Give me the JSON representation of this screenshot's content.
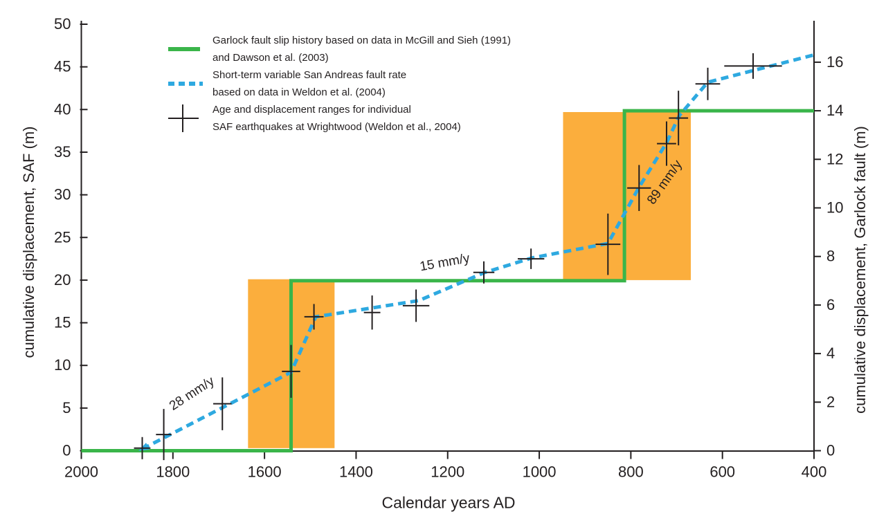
{
  "colors": {
    "garlock_green": "#3ab54a",
    "saf_blue": "#2ea9e0",
    "highlight_orange": "#fbae3d",
    "ink": "#231f20"
  },
  "legend": {
    "items": [
      {
        "swatch": "green-solid-line",
        "line1": "Garlock fault slip history based on data in McGill and Sieh (1991)",
        "line2": "and Dawson et al. (2003)"
      },
      {
        "swatch": "blue-dashed-line",
        "line1": "Short-term variable San Andreas fault rate",
        "line2": "based on data in Weldon et al. (2004)"
      },
      {
        "swatch": "black-cross",
        "line1": "Age and displacement ranges for individual",
        "line2": "SAF earthquakes at Wrightwood (Weldon et al., 2004)"
      }
    ]
  },
  "chart_data": {
    "type": "line",
    "title": "",
    "xlabel": "Calendar years AD",
    "ylabel_left": "cumulative displacement, SAF (m)",
    "ylabel_right": "cumulative displacement, Garlock fault (m)",
    "x_range": [
      2000,
      400
    ],
    "x_reversed": true,
    "x_ticks": [
      2000,
      1800,
      1600,
      1400,
      1200,
      1000,
      800,
      600,
      400
    ],
    "y_left_range": [
      0,
      50
    ],
    "y_left_ticks": [
      0,
      5,
      10,
      15,
      20,
      25,
      30,
      35,
      40,
      45,
      50
    ],
    "y_right_range": [
      0,
      16
    ],
    "y_right_ticks": [
      0,
      2,
      4,
      6,
      8,
      10,
      12,
      14,
      16
    ],
    "grid": false,
    "legend_position": "top-left",
    "series": [
      {
        "name": "Garlock fault slip history based on data in McGill and Sieh (1991) and Dawson et al. (2003)",
        "type": "step-line",
        "axis": "right",
        "color": "#3ab54a",
        "points": [
          [
            2000,
            0
          ],
          [
            1542,
            0
          ],
          [
            1542,
            7
          ],
          [
            814,
            7
          ],
          [
            814,
            14
          ],
          [
            400,
            14
          ]
        ]
      },
      {
        "name": "Short-term variable San Andreas fault rate based on data in Weldon et al. (2004)",
        "type": "dashed-line",
        "axis": "left",
        "color": "#2ea9e0",
        "start_arrow": true,
        "points": [
          [
            1867,
            0.2
          ],
          [
            1542,
            9.2
          ],
          [
            1488,
            15.7
          ],
          [
            1263,
            17.6
          ],
          [
            1119,
            20.9
          ],
          [
            1016,
            22.6
          ],
          [
            850,
            24.3
          ],
          [
            782,
            30.9
          ],
          [
            722,
            36.1
          ],
          [
            694,
            39.3
          ],
          [
            632,
            43.2
          ],
          [
            400,
            46.4
          ]
        ]
      },
      {
        "name": "Age and displacement ranges for individual SAF earthquakes at Wrightwood (Weldon et al., 2004)",
        "type": "error-cross",
        "axis": "left",
        "color": "#231f20",
        "points": [
          {
            "year": 1867,
            "m": 0.3,
            "year_err": 18,
            "m_err": 1.3
          },
          {
            "year": 1820,
            "m": 1.9,
            "year_err": 17,
            "m_err": 3.0
          },
          {
            "year": 1692,
            "m": 5.5,
            "year_err": 20,
            "m_err": 3.1
          },
          {
            "year": 1542,
            "m": 9.3,
            "year_err": 20,
            "m_err": 3.1
          },
          {
            "year": 1492,
            "m": 15.7,
            "year_err": 21,
            "m_err": 1.5
          },
          {
            "year": 1365,
            "m": 16.2,
            "year_err": 18,
            "m_err": 2.0
          },
          {
            "year": 1269,
            "m": 17.0,
            "year_err": 29,
            "m_err": 1.9
          },
          {
            "year": 1121,
            "m": 20.9,
            "year_err": 23,
            "m_err": 1.3
          },
          {
            "year": 1018,
            "m": 22.5,
            "year_err": 29,
            "m_err": 1.2
          },
          {
            "year": 850,
            "m": 24.2,
            "year_err": 27,
            "m_err": 3.6
          },
          {
            "year": 782,
            "m": 30.8,
            "year_err": 26,
            "m_err": 2.7
          },
          {
            "year": 722,
            "m": 36.0,
            "year_err": 21,
            "m_err": 2.6
          },
          {
            "year": 696,
            "m": 39.0,
            "year_err": 21,
            "m_err": 3.2
          },
          {
            "year": 632,
            "m": 43.0,
            "year_err": 27,
            "m_err": 1.9
          },
          {
            "year": 533,
            "m": 45.1,
            "year_err": 63,
            "m_err": 1.5
          }
        ]
      }
    ],
    "highlight_boxes": [
      {
        "color": "#fbae3d",
        "year_from": 1636,
        "year_to": 1447,
        "m_from": 0.3,
        "m_to": 20.1
      },
      {
        "color": "#fbae3d",
        "year_from": 948,
        "year_to": 669,
        "m_from": 20.0,
        "m_to": 39.7
      }
    ],
    "annotations": [
      {
        "text": "28 mm/y",
        "year": 1754,
        "m": 6.3,
        "angle": -33
      },
      {
        "text": "15 mm/y",
        "year": 1205,
        "m": 21.6,
        "angle": -10
      },
      {
        "text": "89 mm/y",
        "year": 719,
        "m": 31.2,
        "angle": -55
      }
    ]
  }
}
